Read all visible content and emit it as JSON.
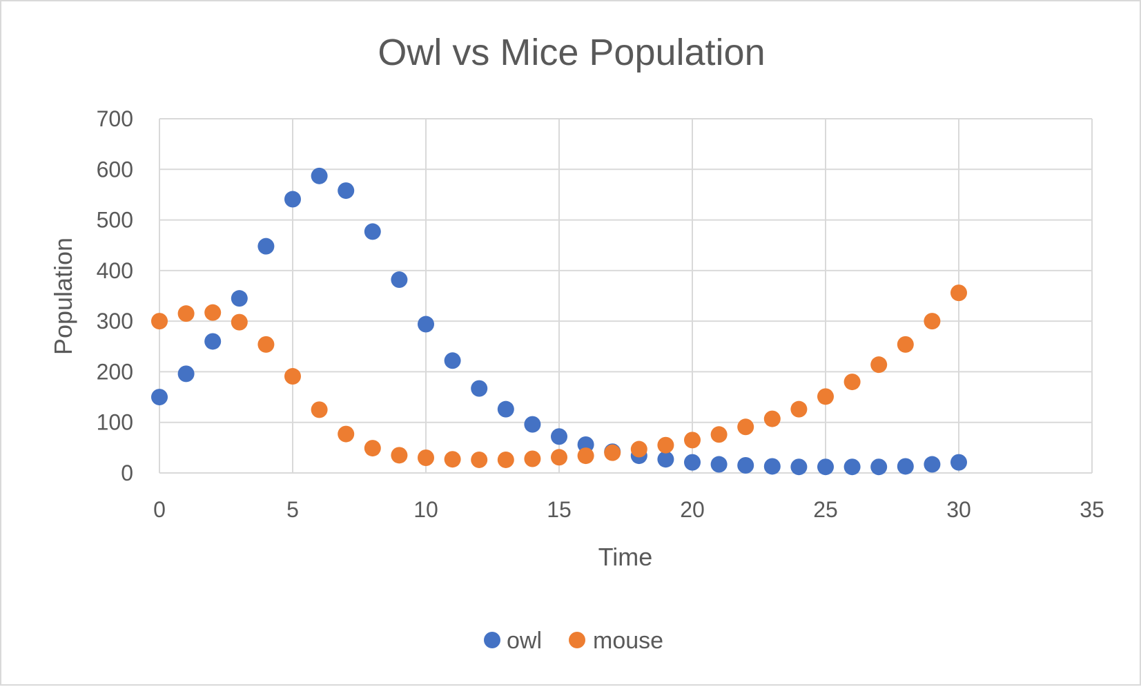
{
  "chart_data": {
    "type": "scatter",
    "title": "Owl vs Mice Population",
    "xlabel": "Time",
    "ylabel": "Population",
    "xlim": [
      0,
      35
    ],
    "ylim": [
      0,
      700
    ],
    "x_ticks": [
      0,
      5,
      10,
      15,
      20,
      25,
      30,
      35
    ],
    "y_ticks": [
      0,
      100,
      200,
      300,
      400,
      500,
      600,
      700
    ],
    "grid": true,
    "legend_position": "bottom",
    "series": [
      {
        "name": "owl",
        "color": "#4472C4",
        "x": [
          0,
          1,
          2,
          3,
          4,
          5,
          6,
          7,
          8,
          9,
          10,
          11,
          12,
          13,
          14,
          15,
          16,
          17,
          18,
          19,
          20,
          21,
          22,
          23,
          24,
          25,
          26,
          27,
          28,
          29,
          30
        ],
        "y": [
          150,
          196,
          260,
          345,
          448,
          541,
          587,
          558,
          477,
          382,
          294,
          222,
          167,
          126,
          96,
          72,
          56,
          42,
          34,
          27,
          21,
          17,
          15,
          13,
          12,
          12,
          12,
          12,
          13,
          17,
          21
        ]
      },
      {
        "name": "mouse",
        "color": "#ED7D31",
        "x": [
          0,
          1,
          2,
          3,
          4,
          5,
          6,
          7,
          8,
          9,
          10,
          11,
          12,
          13,
          14,
          15,
          16,
          17,
          18,
          19,
          20,
          21,
          22,
          23,
          24,
          25,
          26,
          27,
          28,
          29,
          30
        ],
        "y": [
          300,
          315,
          317,
          298,
          254,
          191,
          125,
          77,
          49,
          35,
          30,
          27,
          26,
          26,
          28,
          31,
          34,
          40,
          47,
          55,
          65,
          76,
          91,
          107,
          126,
          151,
          180,
          214,
          254,
          300,
          356
        ]
      }
    ]
  }
}
